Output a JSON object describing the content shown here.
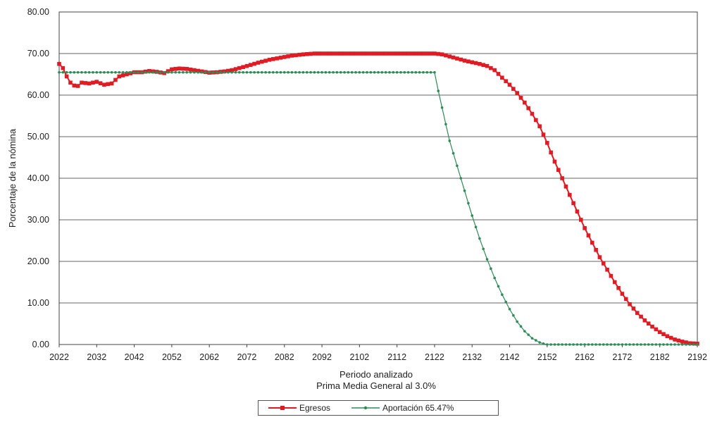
{
  "chart_data": {
    "type": "line",
    "title": "",
    "xlabel": "Periodo analizado",
    "xlabel2": "Prima Media General al 3.0%",
    "ylabel": "Porcentaje de la nómina",
    "ylim": [
      0,
      80
    ],
    "xlim": [
      2022,
      2192
    ],
    "y_ticks": [
      "0.00",
      "10.00",
      "20.00",
      "30.00",
      "40.00",
      "50.00",
      "60.00",
      "70.00",
      "80.00"
    ],
    "x_ticks": [
      "2022",
      "2032",
      "2042",
      "2052",
      "2062",
      "2072",
      "2082",
      "2092",
      "2102",
      "2112",
      "2122",
      "2132",
      "2142",
      "2152",
      "2162",
      "2172",
      "2182",
      "2192"
    ],
    "grid": true,
    "legend_position": "bottom",
    "series": [
      {
        "name": "Egresos",
        "color": "#e01b24",
        "marker": "square",
        "x": [
          2022,
          2023,
          2024,
          2025,
          2026,
          2027,
          2028,
          2030,
          2032,
          2034,
          2036,
          2038,
          2040,
          2042,
          2044,
          2046,
          2048,
          2050,
          2052,
          2054,
          2056,
          2058,
          2060,
          2062,
          2064,
          2066,
          2068,
          2070,
          2072,
          2075,
          2078,
          2081,
          2084,
          2087,
          2090,
          2093,
          2096,
          2099,
          2102,
          2105,
          2108,
          2111,
          2114,
          2117,
          2120,
          2122,
          2124,
          2126,
          2128,
          2130,
          2132,
          2134,
          2136,
          2138,
          2140,
          2142,
          2144,
          2146,
          2148,
          2150,
          2151,
          2152,
          2153,
          2154,
          2156,
          2158,
          2160,
          2162,
          2164,
          2166,
          2168,
          2170,
          2172,
          2174,
          2176,
          2178,
          2180,
          2182,
          2184,
          2186,
          2188,
          2190,
          2192
        ],
        "y": [
          67.5,
          66.5,
          64.5,
          63.0,
          62.3,
          62.2,
          63.0,
          62.8,
          63.2,
          62.5,
          62.8,
          64.5,
          65.0,
          65.5,
          65.5,
          65.8,
          65.6,
          65.3,
          66.2,
          66.4,
          66.3,
          66.0,
          65.7,
          65.4,
          65.5,
          65.7,
          66.0,
          66.5,
          67.0,
          67.8,
          68.5,
          69.0,
          69.5,
          69.8,
          70.0,
          70.0,
          70.0,
          70.0,
          70.0,
          70.0,
          70.0,
          70.0,
          70.0,
          70.0,
          70.0,
          70.0,
          69.8,
          69.3,
          68.8,
          68.3,
          67.9,
          67.5,
          67.0,
          66.0,
          64.2,
          62.5,
          60.5,
          58.2,
          55.5,
          52.5,
          50.5,
          48.5,
          46.2,
          44.0,
          40.0,
          36.0,
          32.0,
          28.0,
          24.5,
          21.0,
          18.0,
          15.0,
          12.2,
          9.7,
          7.6,
          5.8,
          4.3,
          3.0,
          2.0,
          1.2,
          0.7,
          0.3,
          0.2
        ]
      },
      {
        "name": "Aportación 65.47%",
        "color": "#2e8b57",
        "marker": "dot",
        "x": [
          2022,
          2030,
          2040,
          2050,
          2060,
          2070,
          2080,
          2090,
          2100,
          2110,
          2120,
          2122,
          2123,
          2124,
          2125,
          2126,
          2128,
          2130,
          2132,
          2134,
          2136,
          2138,
          2140,
          2142,
          2144,
          2146,
          2148,
          2150,
          2151,
          2152,
          2155,
          2160,
          2165,
          2170,
          2175,
          2180,
          2185,
          2192
        ],
        "y": [
          65.47,
          65.47,
          65.47,
          65.47,
          65.47,
          65.47,
          65.47,
          65.47,
          65.47,
          65.47,
          65.47,
          65.47,
          61.0,
          57.0,
          53.0,
          49.0,
          43.0,
          37.0,
          31.0,
          25.5,
          20.5,
          16.0,
          12.0,
          8.5,
          5.5,
          3.2,
          1.5,
          0.5,
          0.2,
          0.0,
          0.0,
          0.0,
          0.0,
          0.0,
          0.0,
          0.0,
          0.0,
          0.0
        ]
      }
    ]
  }
}
